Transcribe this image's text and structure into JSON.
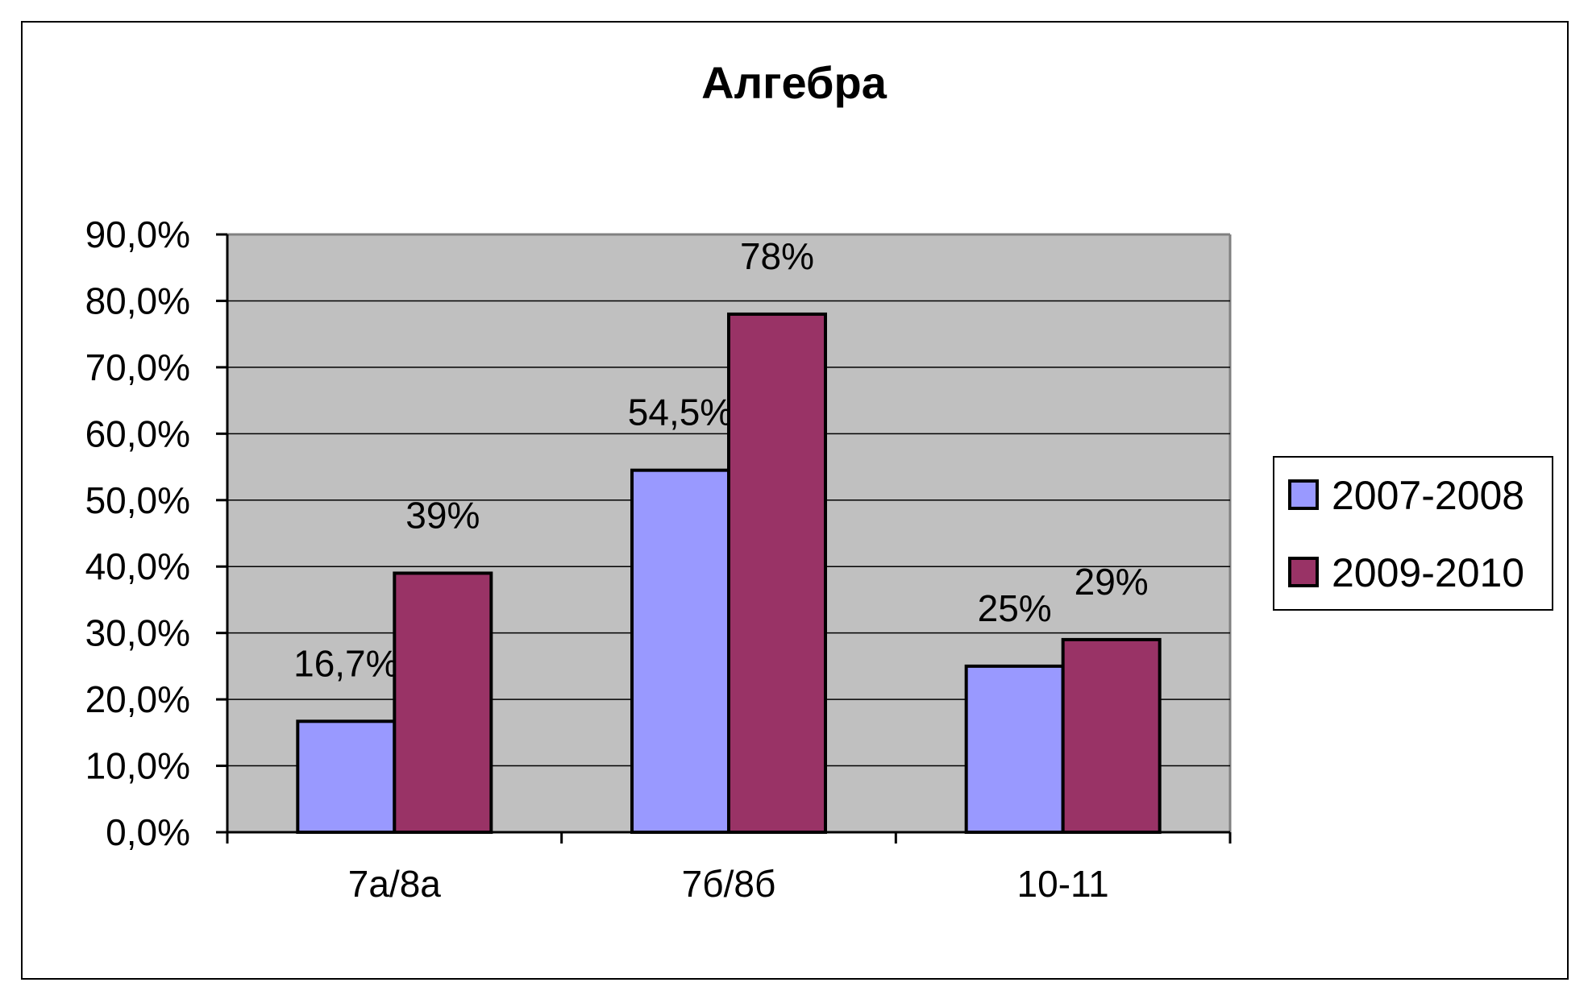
{
  "chart_data": {
    "type": "bar",
    "title": "Алгебра",
    "categories": [
      "7а/8а",
      "7б/8б",
      "10-11"
    ],
    "series": [
      {
        "name": "2007-2008",
        "values": [
          16.7,
          54.5,
          25
        ],
        "labels": [
          "16,7%",
          "54,5%",
          "25%"
        ],
        "color": "#9999ff"
      },
      {
        "name": "2009-2010",
        "values": [
          39,
          78,
          29
        ],
        "labels": [
          "39%",
          "78%",
          "29%"
        ],
        "color": "#993366"
      }
    ],
    "ylim": [
      0,
      90
    ],
    "yticks": [
      0,
      10,
      20,
      30,
      40,
      50,
      60,
      70,
      80,
      90
    ],
    "ytick_labels": [
      "0,0%",
      "10,0%",
      "20,0%",
      "30,0%",
      "40,0%",
      "50,0%",
      "60,0%",
      "70,0%",
      "80,0%",
      "90,0%"
    ],
    "grid": true,
    "legend": "right",
    "plot_bg": "#c0c0c0"
  }
}
